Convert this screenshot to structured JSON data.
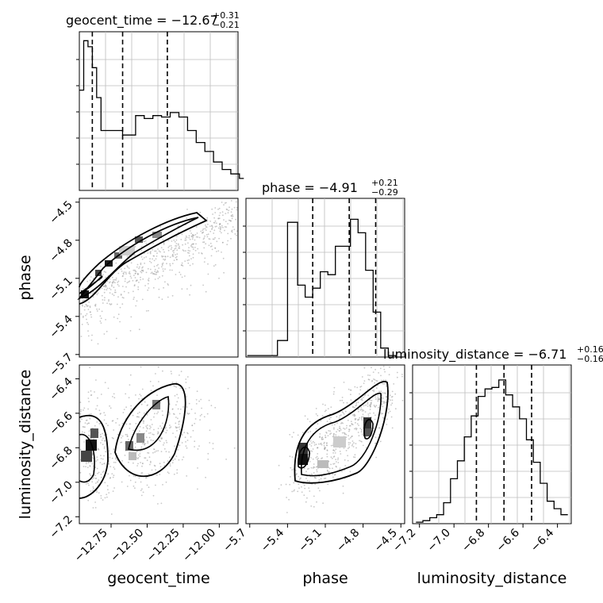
{
  "figure": {
    "titles": {
      "geocent_time": {
        "main": "geocent_time = −12.67",
        "sup": "+0.31",
        "sub": "−0.21"
      },
      "phase": {
        "main": "phase = −4.91",
        "sup": "+0.21",
        "sub": "−0.29"
      },
      "luminosity_distance": {
        "main": "luminosity_distance = −6.71",
        "sup": "+0.16",
        "sub": "−0.16"
      }
    },
    "axis_labels": {
      "geocent_time": "geocent_time",
      "phase": "phase",
      "luminosity_distance": "luminosity_distance"
    }
  },
  "chart_data": [
    {
      "type": "bar",
      "variable": "geocent_time",
      "bin_edges": [
        -12.97,
        -12.94,
        -12.91,
        -12.88,
        -12.85,
        -12.82,
        -12.79,
        -12.76,
        -12.73,
        -12.7,
        -12.67,
        -12.64,
        -12.61,
        -12.58,
        -12.55,
        -12.52,
        -12.49,
        -12.46,
        -12.43,
        -12.4,
        -12.37,
        -12.34,
        -12.31,
        -12.28,
        -12.25,
        -12.22,
        -12.19,
        -12.16,
        -12.13,
        -12.1,
        -12.07,
        -12.04,
        -12.01,
        -11.98,
        -11.95,
        -11.92,
        -11.89,
        -11.86,
        -11.83
      ],
      "values": [
        0.67,
        1.0,
        0.96,
        0.82,
        0.62,
        0.4,
        0.4,
        0.4,
        0.4,
        0.4,
        0.37,
        0.37,
        0.37,
        0.5,
        0.5,
        0.48,
        0.48,
        0.5,
        0.5,
        0.49,
        0.49,
        0.52,
        0.52,
        0.49,
        0.49,
        0.4,
        0.4,
        0.32,
        0.32,
        0.26,
        0.26,
        0.19,
        0.19,
        0.14,
        0.14,
        0.11,
        0.11,
        0.08
      ],
      "quantiles": [
        -12.88,
        -12.67,
        -12.36
      ],
      "xlim": [
        -12.97,
        -11.87
      ],
      "ylim": [
        0,
        1.06
      ]
    },
    {
      "type": "bar",
      "variable": "phase",
      "bin_edges": [
        -5.72,
        -5.6,
        -5.48,
        -5.4,
        -5.32,
        -5.26,
        -5.2,
        -5.14,
        -5.08,
        -5.02,
        -4.96,
        -4.9,
        -4.84,
        -4.78,
        -4.72,
        -4.66,
        -4.6,
        -4.54,
        -4.48
      ],
      "values": [
        0.01,
        0.01,
        0.11,
        0.9,
        0.48,
        0.4,
        0.46,
        0.57,
        0.55,
        0.74,
        0.74,
        0.92,
        0.83,
        0.58,
        0.3,
        0.06,
        0.01,
        0.0
      ],
      "quantiles": [
        -5.2,
        -4.91,
        -4.7
      ],
      "xlim": [
        -5.73,
        -4.47
      ],
      "ylim": [
        0,
        1.06
      ]
    },
    {
      "type": "bar",
      "variable": "luminosity_distance",
      "bin_edges": [
        -7.22,
        -7.18,
        -7.14,
        -7.1,
        -7.06,
        -7.02,
        -6.98,
        -6.94,
        -6.9,
        -6.86,
        -6.82,
        -6.78,
        -6.74,
        -6.7,
        -6.66,
        -6.62,
        -6.58,
        -6.54,
        -6.5,
        -6.46,
        -6.42,
        -6.38,
        -6.34
      ],
      "values": [
        0.01,
        0.02,
        0.04,
        0.06,
        0.14,
        0.3,
        0.42,
        0.58,
        0.72,
        0.85,
        0.9,
        0.91,
        0.96,
        0.86,
        0.78,
        0.7,
        0.56,
        0.41,
        0.27,
        0.15,
        0.1,
        0.06
      ],
      "quantiles": [
        -6.87,
        -6.71,
        -6.55
      ],
      "xlim": [
        -7.24,
        -6.32
      ],
      "ylim": [
        0,
        1.06
      ]
    },
    {
      "type": "scatter",
      "x_variable": "geocent_time",
      "y_variable": "phase",
      "xlim": [
        -12.97,
        -11.87
      ],
      "ylim": [
        -5.72,
        -4.47
      ],
      "xticks": [
        -12.75,
        -12.5,
        -12.25,
        -12.0
      ],
      "xtick_labels": [
        "−12.75",
        "−12.50",
        "−12.25",
        "−12.00"
      ],
      "yticks": [
        -4.5,
        -4.8,
        -5.1,
        -5.4,
        -5.7
      ],
      "ytick_labels": [
        "−4.5",
        "−4.8",
        "−5.1",
        "−5.4",
        "−5.7"
      ],
      "ridge": [
        [
          -12.97,
          -5.23
        ],
        [
          -12.85,
          -5.05
        ],
        [
          -12.7,
          -4.88
        ],
        [
          -12.55,
          -4.78
        ],
        [
          -12.4,
          -4.68
        ],
        [
          -12.25,
          -4.6
        ],
        [
          -12.05,
          -4.52
        ]
      ]
    },
    {
      "type": "scatter",
      "x_variable": "geocent_time",
      "y_variable": "luminosity_distance",
      "xlim": [
        -12.97,
        -11.87
      ],
      "ylim": [
        -7.24,
        -6.32
      ],
      "yticks": [
        -6.4,
        -6.6,
        -6.8,
        -7.0,
        -7.2
      ],
      "ytick_labels": [
        "−6.4",
        "−6.6",
        "−6.8",
        "−7.0",
        "−7.2"
      ],
      "clusters": [
        [
          -12.92,
          -6.8
        ],
        [
          -12.62,
          -6.72
        ],
        [
          -12.38,
          -6.58
        ]
      ]
    },
    {
      "type": "scatter",
      "x_variable": "phase",
      "y_variable": "luminosity_distance",
      "xlim": [
        -5.73,
        -4.47
      ],
      "ylim": [
        -7.24,
        -6.32
      ],
      "xticks": [
        -5.7,
        -5.4,
        -5.1,
        -4.8,
        -4.5
      ],
      "xtick_labels": [
        "−5.7",
        "−5.4",
        "−5.1",
        "−4.8",
        "−4.5"
      ],
      "clusters": [
        [
          -5.2,
          -6.82
        ],
        [
          -4.99,
          -6.74
        ],
        [
          -4.74,
          -6.62
        ]
      ]
    }
  ],
  "luminosity_ticks": {
    "xticks": [
      -7.2,
      -7.0,
      -6.8,
      -6.6,
      -6.4
    ],
    "xtick_labels": [
      "−7.2",
      "−7.0",
      "−6.8",
      "−6.6",
      "−6.4"
    ]
  }
}
